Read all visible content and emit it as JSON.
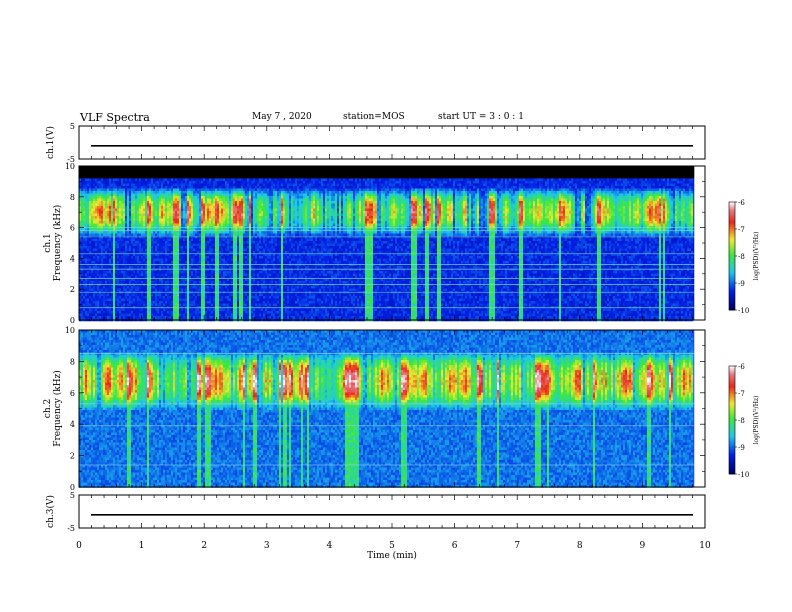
{
  "header": {
    "title": "VLF Spectra",
    "date": "May 7  , 2020",
    "station": "station=MOS",
    "start_ut": "start  UT  =   3 : 0  : 1"
  },
  "chart_data": [
    {
      "type": "line",
      "panel": "ch1-waveform",
      "ylabel": "ch.1(V)",
      "ylim": [
        -5,
        5
      ],
      "yticks": [
        "5",
        "-5"
      ],
      "x": [
        0,
        10
      ],
      "values": [
        -1,
        -1
      ]
    },
    {
      "type": "heatmap",
      "panel": "ch1-spectrogram",
      "ylabel": "ch.1\nFrequency (kHz)",
      "ylim": [
        0,
        10
      ],
      "yticks": [
        "0",
        "2",
        "4",
        "6",
        "8",
        "10"
      ],
      "xlim": [
        0,
        9.83
      ],
      "band_peak_khz": [
        6,
        8
      ],
      "colorbar": {
        "label": "log(PSD)(V²/Hz)",
        "range": [
          -10,
          -6
        ],
        "ticks": [
          "-6",
          "-7",
          "-8",
          "-9",
          "-10"
        ]
      }
    },
    {
      "type": "heatmap",
      "panel": "ch2-spectrogram",
      "ylabel": "ch.2\nFrequency (kHz)",
      "ylim": [
        0,
        10
      ],
      "yticks": [
        "0",
        "2",
        "4",
        "6",
        "8",
        "10"
      ],
      "xlim": [
        0,
        9.83
      ],
      "band_peak_khz": [
        5.5,
        8
      ],
      "colorbar": {
        "label": "log(PSD)(V²/Hz)",
        "range": [
          -10,
          -6
        ],
        "ticks": [
          "-6",
          "-7",
          "-8",
          "-9",
          "-10"
        ]
      }
    },
    {
      "type": "line",
      "panel": "ch3-waveform",
      "ylabel": "ch.3(V)",
      "ylim": [
        -5,
        5
      ],
      "yticks": [
        "5",
        "-5"
      ],
      "x": [
        0,
        10
      ],
      "values": [
        -1,
        -1
      ]
    },
    {
      "type": "axis",
      "panel": "time-axis",
      "xlabel": "Time (min)",
      "xlim": [
        0,
        10
      ],
      "xticks": [
        "0",
        "1",
        "2",
        "3",
        "4",
        "5",
        "6",
        "7",
        "8",
        "9",
        "10"
      ]
    }
  ],
  "colors": {
    "black": "#000000",
    "noise_blue": "#1f3cff",
    "deep_blue": "#001a9a",
    "cyan": "#28c8e8",
    "green": "#3ce83c",
    "yellow": "#f0e830",
    "red": "#e8281c"
  }
}
